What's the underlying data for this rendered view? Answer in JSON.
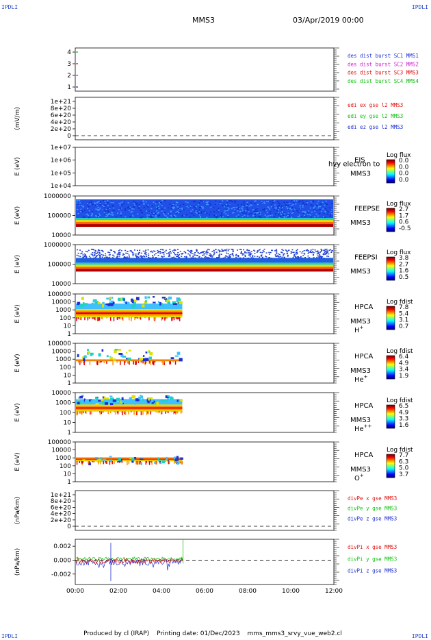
{
  "header": {
    "spacecraft": "MMS3",
    "date": "03/Apr/2019 00:00",
    "corner_tl": "IPDLI",
    "corner_tr": "IPDLI",
    "corner_bl": "IPDLI",
    "corner_br": "IPDLI"
  },
  "footer": {
    "produced": "Produced by cl (IRAP)",
    "printing": "Printing date: 01/Dec/2023",
    "file": "mms_mms3_srvy_vue_web2.cl"
  },
  "chart_data": {
    "type": "stacked-panels",
    "x_axis": {
      "ticks": [
        "00:00",
        "02:00",
        "04:00",
        "06:00",
        "08:00",
        "10:00",
        "12:00"
      ],
      "range_hours": [
        0,
        12
      ]
    },
    "panels": [
      {
        "id": "burst",
        "type": "scatter",
        "yticks": [
          "4",
          "3",
          "2",
          "1"
        ],
        "ylabel": "",
        "legend": [
          {
            "text": "des dist burst SC1 MMS1",
            "color": "#1f2fd0"
          },
          {
            "text": "des dist burst SC2 MMS2",
            "color": "#d020d0"
          },
          {
            "text": "des dist burst SC3 MMS3",
            "color": "#e01010"
          },
          {
            "text": "des dist burst SC4 MMS4",
            "color": "#10c010"
          }
        ],
        "points": [
          {
            "x": 0.05,
            "y": 4,
            "color": "#10c010"
          },
          {
            "x": 0.05,
            "y": 3,
            "color": "#e01010"
          },
          {
            "x": 0.05,
            "y": 2,
            "color": "#d020d0"
          },
          {
            "x": 0.05,
            "y": 1,
            "color": "#1f2fd0"
          }
        ]
      },
      {
        "id": "edi",
        "type": "line",
        "yticks": [
          "1e+21",
          "8e+20",
          "6e+20",
          "4e+20",
          "2e+20",
          "0"
        ],
        "ylabel": "(mV/m)",
        "zero_line": true,
        "legend": [
          {
            "text": "edi ex gse l2 MMS3",
            "color": "#e01010"
          },
          {
            "text": "edi ey gse l2 MMS3",
            "color": "#10c010"
          },
          {
            "text": "edi ez gse l2 MMS3",
            "color": "#1f2fd0"
          }
        ]
      },
      {
        "id": "eis",
        "type": "heatmap",
        "yticks": [
          "1e+07",
          "1e+06",
          "1e+05",
          "1e+04"
        ],
        "ylabel": "E (eV)",
        "inst": [
          "EIS",
          "MMS3"
        ],
        "extra": "hvy electron to",
        "cbar_title": "Log flux",
        "cbar_ticks": [
          "0.0",
          "0.0",
          "0.0",
          "0.0"
        ]
      },
      {
        "id": "feepse",
        "type": "heatmap",
        "yticks": [
          "1000000",
          "100000",
          "10000"
        ],
        "ylabel": "E (eV)",
        "inst": [
          "FEEPSE",
          "MMS3"
        ],
        "cbar_title": "Log flux",
        "cbar_ticks": [
          "2.7",
          "1.7",
          "0.6",
          "-0.5"
        ],
        "coverage_hours": [
          0,
          12
        ]
      },
      {
        "id": "feepsi",
        "type": "heatmap",
        "yticks": [
          "1000000",
          "100000",
          "10000"
        ],
        "ylabel": "E (eV)",
        "inst": [
          "FEEPSI",
          "MMS3"
        ],
        "cbar_title": "Log flux",
        "cbar_ticks": [
          "3.8",
          "2.7",
          "1.6",
          "0.5"
        ],
        "coverage_hours": [
          0,
          12
        ]
      },
      {
        "id": "hpca_h",
        "type": "heatmap",
        "yticks": [
          "100000",
          "10000",
          "1000",
          "100",
          "10",
          "1"
        ],
        "ylabel": "E (eV)",
        "inst": [
          "HPCA",
          "MMS3"
        ],
        "species": "H",
        "species_sup": "+",
        "cbar_title": "Log fdist",
        "cbar_ticks": [
          "7.8",
          "5.4",
          "3.1",
          "0.7"
        ],
        "coverage_hours": [
          0,
          5
        ]
      },
      {
        "id": "hpca_he",
        "type": "heatmap",
        "yticks": [
          "100000",
          "10000",
          "1000",
          "100",
          "10",
          "1"
        ],
        "ylabel": "E (eV)",
        "inst": [
          "HPCA",
          "MMS3"
        ],
        "species": "He",
        "species_sup": "+",
        "cbar_title": "Log fdist",
        "cbar_ticks": [
          "6.4",
          "4.9",
          "3.4",
          "1.9"
        ],
        "coverage_hours": [
          0,
          5
        ]
      },
      {
        "id": "hpca_hepp",
        "type": "heatmap",
        "yticks": [
          "10000",
          "1000",
          "100",
          "10",
          "1"
        ],
        "ylabel": "E (eV)",
        "inst": [
          "HPCA",
          "MMS3"
        ],
        "species": "He",
        "species_sup": "++",
        "cbar_title": "Log fdist",
        "cbar_ticks": [
          "6.5",
          "4.9",
          "3.3",
          "1.6"
        ],
        "coverage_hours": [
          0,
          5
        ]
      },
      {
        "id": "hpca_o",
        "type": "heatmap",
        "yticks": [
          "100000",
          "10000",
          "1000",
          "100",
          "10",
          "1"
        ],
        "ylabel": "E (eV)",
        "inst": [
          "HPCA",
          "MMS3"
        ],
        "species": "O",
        "species_sup": "+",
        "cbar_title": "Log fdist",
        "cbar_ticks": [
          "7.7",
          "6.3",
          "5.0",
          "3.7"
        ],
        "coverage_hours": [
          0,
          5
        ]
      },
      {
        "id": "divpe",
        "type": "line",
        "yticks": [
          "1e+21",
          "8e+20",
          "6e+20",
          "4e+20",
          "2e+20",
          "0"
        ],
        "ylabel": "(nPa/km)",
        "zero_line": true,
        "legend": [
          {
            "text": "divPe x gse MMS3",
            "color": "#e01010"
          },
          {
            "text": "divPe y gse MMS3",
            "color": "#10c010"
          },
          {
            "text": "divPe z gse MMS3",
            "color": "#1f2fd0"
          }
        ]
      },
      {
        "id": "divpi",
        "type": "line",
        "yticks": [
          "0.002",
          "0.000",
          "-0.002"
        ],
        "ylabel": "(nPa/km)",
        "zero_line": true,
        "ylim": [
          -0.0035,
          0.003
        ],
        "coverage_hours": [
          0,
          5
        ],
        "legend": [
          {
            "text": "divPi x gse MMS3",
            "color": "#e01010"
          },
          {
            "text": "divPi y gse MMS3",
            "color": "#10c010"
          },
          {
            "text": "divPi z gse MMS3",
            "color": "#1f2fd0"
          }
        ]
      }
    ]
  }
}
